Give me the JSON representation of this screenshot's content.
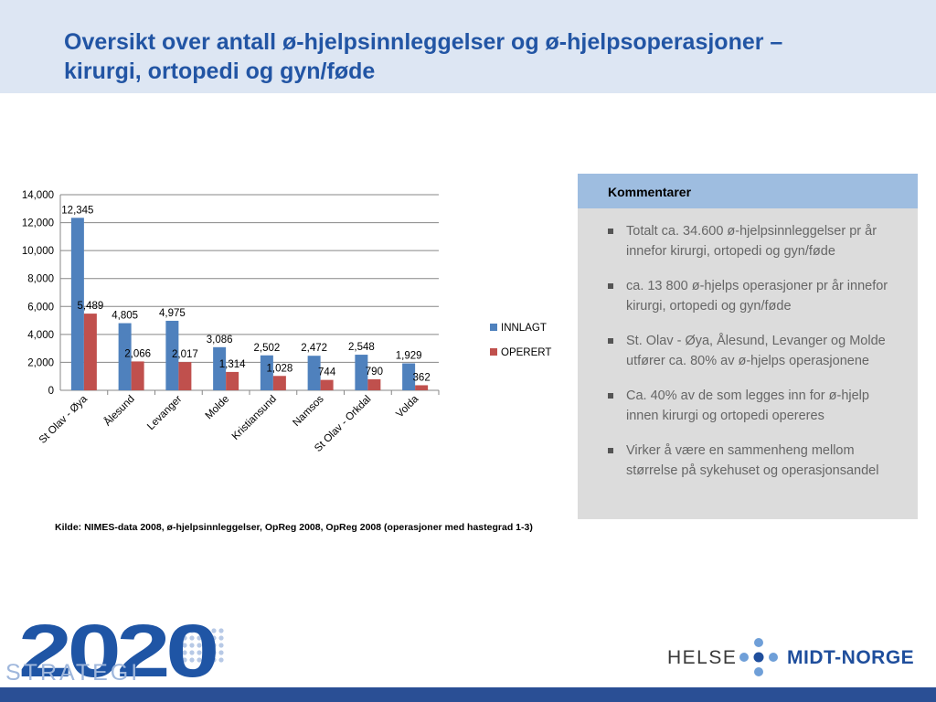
{
  "header": {
    "title_line1": "Oversikt over antall ø-hjelpsinnleggelser og ø-hjelpsoperasjoner –",
    "title_line2": "kirurgi, ortopedi og gyn/føde"
  },
  "chart_data": {
    "type": "bar",
    "categories": [
      "St Olav - Øya",
      "Ålesund",
      "Levanger",
      "Molde",
      "Kristiansund",
      "Namsos",
      "St Olav - Orkdal",
      "Volda"
    ],
    "series": [
      {
        "name": "INNLAGT",
        "color": "#4f81bd",
        "values": [
          12345,
          4805,
          4975,
          3086,
          2502,
          2472,
          2548,
          1929
        ],
        "labels": [
          "12,345",
          "4,805",
          "4,975",
          "3,086",
          "2,502",
          "2,472",
          "2,548",
          "1,929"
        ]
      },
      {
        "name": "OPERERT",
        "color": "#c0504d",
        "values": [
          5489,
          2066,
          2017,
          1314,
          1028,
          744,
          790,
          362
        ],
        "labels": [
          "5,489",
          "2,066",
          "2,017",
          "1,314",
          "1,028",
          "744",
          "790",
          "362"
        ]
      }
    ],
    "ylim": [
      0,
      14000
    ],
    "yticks": [
      0,
      2000,
      4000,
      6000,
      8000,
      10000,
      12000,
      14000
    ],
    "ytick_labels": [
      "0",
      "2,000",
      "4,000",
      "6,000",
      "8,000",
      "10,000",
      "12,000",
      "14,000"
    ],
    "grid": true,
    "legend_placement": "right"
  },
  "source_text": "Kilde: NIMES-data 2008, ø-hjelpsinnleggelser, OpReg 2008, OpReg 2008 (operasjoner med hastegrad 1-3)",
  "comments": {
    "title": "Kommentarer",
    "items": [
      "Totalt ca. 34.600 ø-hjelpsinnleggelser pr år innefor kirurgi, ortopedi og gyn/føde",
      "ca. 13 800 ø-hjelps operasjoner pr år innefor kirurgi, ortopedi og gyn/føde",
      "St. Olav - Øya, Ålesund, Levanger og Molde  utfører ca. 80% av ø-hjelps operasjonene",
      "Ca. 40% av de som legges inn for ø-hjelp innen kirurgi og ortopedi opereres",
      "Virker å være en sammenheng mellom størrelse på sykehuset og operasjonsandel"
    ]
  },
  "logos": {
    "strategy_number": "2020",
    "strategy_word": "STRATEGI",
    "helse_left": "HELSE",
    "helse_right": "MIDT-NORGE"
  }
}
